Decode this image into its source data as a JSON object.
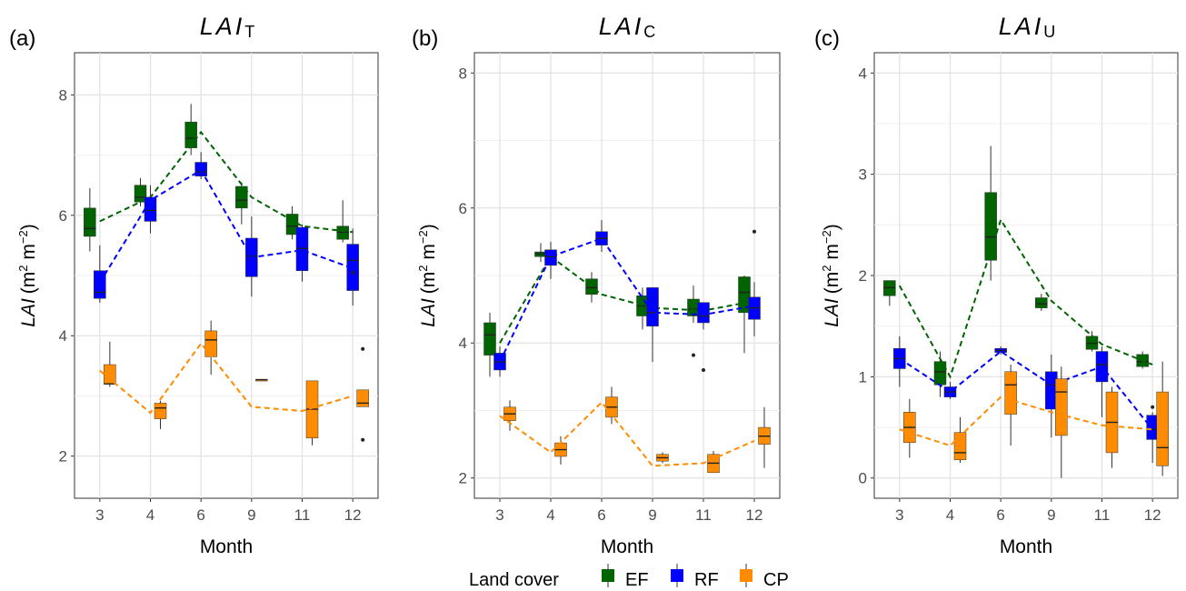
{
  "legend": {
    "title": "Land cover",
    "position": "bottom",
    "items": [
      {
        "label": "EF",
        "color": "#006400"
      },
      {
        "label": "RF",
        "color": "#0000FF"
      },
      {
        "label": "CP",
        "color": "#FF8C00"
      }
    ]
  },
  "chart_data": [
    {
      "type": "boxplot",
      "panel_label": "(a)",
      "title_main": "LAI",
      "title_sub": "T",
      "xlabel": "Month",
      "ylabel_main": "LAI",
      "ylabel_unit": "(m",
      "ylabel_sup1": "2",
      "ylabel_mid": " m",
      "ylabel_sup2": "−2",
      "ylabel_end": ")",
      "categories": [
        "3",
        "4",
        "6",
        "9",
        "11",
        "12"
      ],
      "ylim": [
        1.3,
        8.7
      ],
      "yticks": [
        2,
        4,
        6,
        8
      ],
      "grid": true,
      "series": [
        {
          "name": "EF",
          "color": "#006400",
          "boxes": [
            {
              "lw": 5.4,
              "q1": 5.65,
              "med": 5.78,
              "q3": 6.12,
              "uw": 6.45,
              "out": []
            },
            {
              "lw": 6.15,
              "q1": 6.22,
              "med": 6.3,
              "q3": 6.5,
              "uw": 6.62,
              "out": []
            },
            {
              "lw": 7.0,
              "q1": 7.12,
              "med": 7.28,
              "q3": 7.55,
              "uw": 7.85,
              "out": []
            },
            {
              "lw": 5.85,
              "q1": 6.12,
              "med": 6.25,
              "q3": 6.48,
              "uw": 6.55,
              "out": []
            },
            {
              "lw": 5.6,
              "q1": 5.68,
              "med": 5.82,
              "q3": 6.02,
              "uw": 6.15,
              "out": []
            },
            {
              "lw": 5.55,
              "q1": 5.6,
              "med": 5.72,
              "q3": 5.82,
              "uw": 6.25,
              "out": []
            }
          ],
          "trend": [
            5.9,
            6.3,
            7.38,
            6.3,
            5.82,
            5.72
          ]
        },
        {
          "name": "RF",
          "color": "#0000FF",
          "boxes": [
            {
              "lw": 4.55,
              "q1": 4.62,
              "med": 4.72,
              "q3": 5.08,
              "uw": 5.5,
              "out": []
            },
            {
              "lw": 5.7,
              "q1": 5.9,
              "med": 6.08,
              "q3": 6.3,
              "uw": 6.5,
              "out": []
            },
            {
              "lw": 6.6,
              "q1": 6.65,
              "med": 6.72,
              "q3": 6.88,
              "uw": 7.05,
              "out": []
            },
            {
              "lw": 4.65,
              "q1": 4.98,
              "med": 5.32,
              "q3": 5.62,
              "uw": 5.98,
              "out": []
            },
            {
              "lw": 4.9,
              "q1": 5.08,
              "med": 5.45,
              "q3": 5.8,
              "uw": 5.85,
              "out": []
            },
            {
              "lw": 4.5,
              "q1": 4.75,
              "med": 5.25,
              "q3": 5.52,
              "uw": 5.78,
              "out": [
                5.05
              ]
            }
          ],
          "trend": [
            4.88,
            6.25,
            6.75,
            5.3,
            5.42,
            5.12
          ]
        },
        {
          "name": "CP",
          "color": "#FF8C00",
          "boxes": [
            {
              "lw": 3.15,
              "q1": 3.2,
              "med": 3.2,
              "q3": 3.52,
              "uw": 3.9,
              "out": []
            },
            {
              "lw": 2.45,
              "q1": 2.62,
              "med": 2.8,
              "q3": 2.88,
              "uw": 2.92,
              "out": []
            },
            {
              "lw": 3.35,
              "q1": 3.65,
              "med": 3.93,
              "q3": 4.08,
              "uw": 4.25,
              "out": []
            },
            {
              "lw": 3.27,
              "q1": 3.27,
              "med": 3.27,
              "q3": 3.27,
              "uw": 3.27,
              "out": []
            },
            {
              "lw": 2.18,
              "q1": 2.3,
              "med": 2.78,
              "q3": 3.25,
              "uw": 3.25,
              "out": []
            },
            {
              "lw": 2.85,
              "q1": 2.82,
              "med": 2.88,
              "q3": 3.1,
              "uw": 3.1,
              "out": [
                3.78,
                2.27
              ]
            }
          ],
          "trend": [
            3.42,
            2.72,
            3.87,
            2.82,
            2.75,
            3.0
          ]
        }
      ]
    },
    {
      "type": "boxplot",
      "panel_label": "(b)",
      "title_main": "LAI",
      "title_sub": "C",
      "xlabel": "Month",
      "ylabel_main": "LAI",
      "ylabel_unit": "(m",
      "ylabel_sup1": "2",
      "ylabel_mid": " m",
      "ylabel_sup2": "−2",
      "ylabel_end": ")",
      "categories": [
        "3",
        "4",
        "6",
        "9",
        "11",
        "12"
      ],
      "ylim": [
        1.7,
        8.3
      ],
      "yticks": [
        2,
        4,
        6,
        8
      ],
      "grid": true,
      "series": [
        {
          "name": "EF",
          "color": "#006400",
          "boxes": [
            {
              "lw": 3.5,
              "q1": 3.82,
              "med": 4.12,
              "q3": 4.3,
              "uw": 4.45,
              "out": []
            },
            {
              "lw": 5.2,
              "q1": 5.28,
              "med": 5.32,
              "q3": 5.35,
              "uw": 5.48,
              "out": []
            },
            {
              "lw": 4.6,
              "q1": 4.72,
              "med": 4.82,
              "q3": 4.95,
              "uw": 5.05,
              "out": []
            },
            {
              "lw": 4.2,
              "q1": 4.4,
              "med": 4.55,
              "q3": 4.7,
              "uw": 4.82,
              "out": []
            },
            {
              "lw": 4.3,
              "q1": 4.4,
              "med": 4.5,
              "q3": 4.65,
              "uw": 4.85,
              "out": [
                3.82
              ]
            },
            {
              "lw": 3.85,
              "q1": 4.45,
              "med": 4.75,
              "q3": 4.98,
              "uw": 5.0,
              "out": []
            }
          ],
          "trend": [
            4.0,
            5.28,
            4.72,
            4.52,
            4.48,
            4.62
          ]
        },
        {
          "name": "RF",
          "color": "#0000FF",
          "boxes": [
            {
              "lw": 3.5,
              "q1": 3.6,
              "med": 3.72,
              "q3": 3.85,
              "uw": 3.95,
              "out": []
            },
            {
              "lw": 4.95,
              "q1": 5.15,
              "med": 5.28,
              "q3": 5.38,
              "uw": 5.5,
              "out": []
            },
            {
              "lw": 5.35,
              "q1": 5.45,
              "med": 5.55,
              "q3": 5.65,
              "uw": 5.82,
              "out": []
            },
            {
              "lw": 3.72,
              "q1": 4.25,
              "med": 4.45,
              "q3": 4.82,
              "uw": 4.82,
              "out": []
            },
            {
              "lw": 4.2,
              "q1": 4.3,
              "med": 4.4,
              "q3": 4.6,
              "uw": 4.6,
              "out": [
                3.6
              ]
            },
            {
              "lw": 4.1,
              "q1": 4.35,
              "med": 4.52,
              "q3": 4.68,
              "uw": 4.9,
              "out": [
                5.65
              ]
            }
          ],
          "trend": [
            3.72,
            5.28,
            5.55,
            4.45,
            4.42,
            4.55
          ]
        },
        {
          "name": "CP",
          "color": "#FF8C00",
          "boxes": [
            {
              "lw": 2.7,
              "q1": 2.85,
              "med": 2.95,
              "q3": 3.05,
              "uw": 3.15,
              "out": []
            },
            {
              "lw": 2.2,
              "q1": 2.32,
              "med": 2.42,
              "q3": 2.52,
              "uw": 2.62,
              "out": []
            },
            {
              "lw": 2.8,
              "q1": 2.9,
              "med": 3.05,
              "q3": 3.2,
              "uw": 3.35,
              "out": []
            },
            {
              "lw": 2.22,
              "q1": 2.25,
              "med": 2.3,
              "q3": 2.35,
              "uw": 2.38,
              "out": []
            },
            {
              "lw": 2.08,
              "q1": 2.08,
              "med": 2.22,
              "q3": 2.35,
              "uw": 2.4,
              "out": []
            },
            {
              "lw": 2.15,
              "q1": 2.5,
              "med": 2.62,
              "q3": 2.75,
              "uw": 3.05,
              "out": []
            }
          ],
          "trend": [
            2.92,
            2.38,
            3.12,
            2.18,
            2.22,
            2.55
          ]
        }
      ]
    },
    {
      "type": "boxplot",
      "panel_label": "(c)",
      "title_main": "LAI",
      "title_sub": "U",
      "xlabel": "Month",
      "ylabel_main": "LAI",
      "ylabel_unit": "(m",
      "ylabel_sup1": "2",
      "ylabel_mid": " m",
      "ylabel_sup2": "−2",
      "ylabel_end": ")",
      "categories": [
        "3",
        "4",
        "6",
        "9",
        "11",
        "12"
      ],
      "ylim": [
        -0.2,
        4.2
      ],
      "yticks": [
        0,
        1,
        2,
        3,
        4
      ],
      "grid": true,
      "series": [
        {
          "name": "EF",
          "color": "#006400",
          "boxes": [
            {
              "lw": 1.7,
              "q1": 1.8,
              "med": 1.88,
              "q3": 1.95,
              "uw": 1.95,
              "out": []
            },
            {
              "lw": 0.8,
              "q1": 0.92,
              "med": 1.05,
              "q3": 1.15,
              "uw": 1.25,
              "out": []
            },
            {
              "lw": 1.95,
              "q1": 2.15,
              "med": 2.38,
              "q3": 2.82,
              "uw": 3.28,
              "out": []
            },
            {
              "lw": 1.65,
              "q1": 1.68,
              "med": 1.72,
              "q3": 1.78,
              "uw": 1.82,
              "out": []
            },
            {
              "lw": 1.25,
              "q1": 1.27,
              "med": 1.33,
              "q3": 1.4,
              "uw": 1.45,
              "out": []
            },
            {
              "lw": 1.08,
              "q1": 1.1,
              "med": 1.15,
              "q3": 1.22,
              "uw": 1.25,
              "out": []
            }
          ],
          "trend": [
            1.9,
            1.0,
            2.55,
            1.75,
            1.32,
            1.12
          ]
        },
        {
          "name": "RF",
          "color": "#0000FF",
          "boxes": [
            {
              "lw": 0.9,
              "q1": 1.08,
              "med": 1.18,
              "q3": 1.28,
              "uw": 1.4,
              "out": []
            },
            {
              "lw": 0.78,
              "q1": 0.8,
              "med": 0.85,
              "q3": 0.9,
              "uw": 0.95,
              "out": []
            },
            {
              "lw": 1.22,
              "q1": 1.24,
              "med": 1.26,
              "q3": 1.28,
              "uw": 1.3,
              "out": []
            },
            {
              "lw": 0.4,
              "q1": 0.68,
              "med": 0.92,
              "q3": 1.05,
              "uw": 1.22,
              "out": []
            },
            {
              "lw": 0.6,
              "q1": 0.95,
              "med": 1.12,
              "q3": 1.25,
              "uw": 1.3,
              "out": []
            },
            {
              "lw": 0.15,
              "q1": 0.38,
              "med": 0.48,
              "q3": 0.62,
              "uw": 0.65,
              "out": [
                0.7
              ]
            }
          ],
          "trend": [
            1.18,
            0.85,
            1.25,
            0.92,
            1.1,
            0.48
          ]
        },
        {
          "name": "CP",
          "color": "#FF8C00",
          "boxes": [
            {
              "lw": 0.2,
              "q1": 0.35,
              "med": 0.5,
              "q3": 0.65,
              "uw": 0.78,
              "out": []
            },
            {
              "lw": 0.15,
              "q1": 0.18,
              "med": 0.25,
              "q3": 0.45,
              "uw": 0.6,
              "out": []
            },
            {
              "lw": 0.32,
              "q1": 0.63,
              "med": 0.92,
              "q3": 1.05,
              "uw": 1.12,
              "out": []
            },
            {
              "lw": 0.0,
              "q1": 0.42,
              "med": 0.85,
              "q3": 0.98,
              "uw": 1.1,
              "out": []
            },
            {
              "lw": 0.1,
              "q1": 0.25,
              "med": 0.55,
              "q3": 0.85,
              "uw": 0.9,
              "out": []
            },
            {
              "lw": 0.02,
              "q1": 0.12,
              "med": 0.3,
              "q3": 0.85,
              "uw": 1.15,
              "out": []
            }
          ],
          "trend": [
            0.48,
            0.32,
            0.8,
            0.65,
            0.52,
            0.48
          ]
        }
      ]
    }
  ]
}
